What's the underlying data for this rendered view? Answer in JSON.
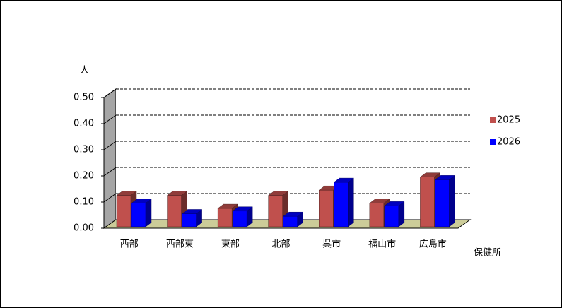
{
  "chart_data": {
    "type": "bar3d",
    "y_label": "人",
    "x_label": "保健所",
    "categories": [
      "西部",
      "西部東",
      "東部",
      "北部",
      "呉市",
      "福山市",
      "広島市"
    ],
    "series": [
      {
        "name": "2025",
        "color": "#c0504d",
        "values": [
          0.12,
          0.12,
          0.07,
          0.12,
          0.14,
          0.09,
          0.19
        ]
      },
      {
        "name": "2026",
        "color": "#0000ff",
        "values": [
          0.09,
          0.05,
          0.06,
          0.04,
          0.17,
          0.08,
          0.18
        ]
      }
    ],
    "ylim": [
      0,
      0.5
    ],
    "yticks": [
      {
        "value": 0,
        "label": "0.00"
      },
      {
        "value": 0.1,
        "label": "0.10"
      },
      {
        "value": 0.2,
        "label": "0.20"
      },
      {
        "value": 0.3,
        "label": "0.30"
      },
      {
        "value": 0.4,
        "label": "0.40"
      },
      {
        "value": 0.5,
        "label": "0.50"
      }
    ],
    "grid": true,
    "legend": "right"
  }
}
